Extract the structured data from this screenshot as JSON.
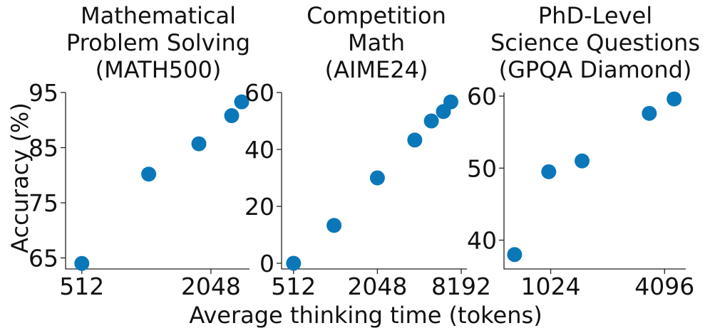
{
  "figure": {
    "xlabel": "Average thinking time (tokens)",
    "ylabel": "Accuracy (%)",
    "point_color": "#0a77b9"
  },
  "chart_data": [
    {
      "type": "scatter",
      "title": [
        "Mathematical",
        "Problem Solving",
        "(MATH500)"
      ],
      "x_scale": "log2",
      "xlim": [
        430,
        3100
      ],
      "x_ticks": [
        512,
        2048
      ],
      "x_tick_labels": [
        "512",
        "2048"
      ],
      "ylim": [
        63,
        95
      ],
      "y_ticks": [
        65,
        75,
        85,
        95
      ],
      "y_tick_labels": [
        "65",
        "75",
        "85",
        "95"
      ],
      "x": [
        512,
        1050,
        1800,
        2560,
        2850
      ],
      "y": [
        64.0,
        80.2,
        85.7,
        90.8,
        93.3
      ]
    },
    {
      "type": "scatter",
      "title": [
        "Competition",
        "Math",
        "(AIME24)"
      ],
      "x_scale": "log2",
      "xlim": [
        420,
        9000
      ],
      "x_ticks": [
        512,
        2048,
        8192
      ],
      "x_tick_labels": [
        "512",
        "2048",
        "8192"
      ],
      "ylim": [
        -2,
        60
      ],
      "y_ticks": [
        0,
        20,
        40,
        60
      ],
      "y_tick_labels": [
        "0",
        "20",
        "40",
        "60"
      ],
      "x": [
        512,
        1000,
        2048,
        3800,
        5000,
        6100,
        6900
      ],
      "y": [
        0.0,
        13.3,
        30.0,
        43.3,
        50.0,
        53.3,
        56.7
      ]
    },
    {
      "type": "scatter",
      "title": [
        "PhD-Level",
        "Science Questions",
        "(GPQA Diamond)"
      ],
      "x_scale": "log2",
      "xlim": [
        580,
        5300
      ],
      "x_ticks": [
        1024,
        4096
      ],
      "x_tick_labels": [
        "1024",
        "4096"
      ],
      "ylim": [
        36,
        60.5
      ],
      "y_ticks": [
        40,
        50,
        60
      ],
      "y_tick_labels": [
        "40",
        "50",
        "60"
      ],
      "x": [
        660,
        1000,
        1500,
        3400,
        4600
      ],
      "y": [
        38.0,
        49.5,
        51.0,
        57.6,
        59.6
      ]
    }
  ]
}
